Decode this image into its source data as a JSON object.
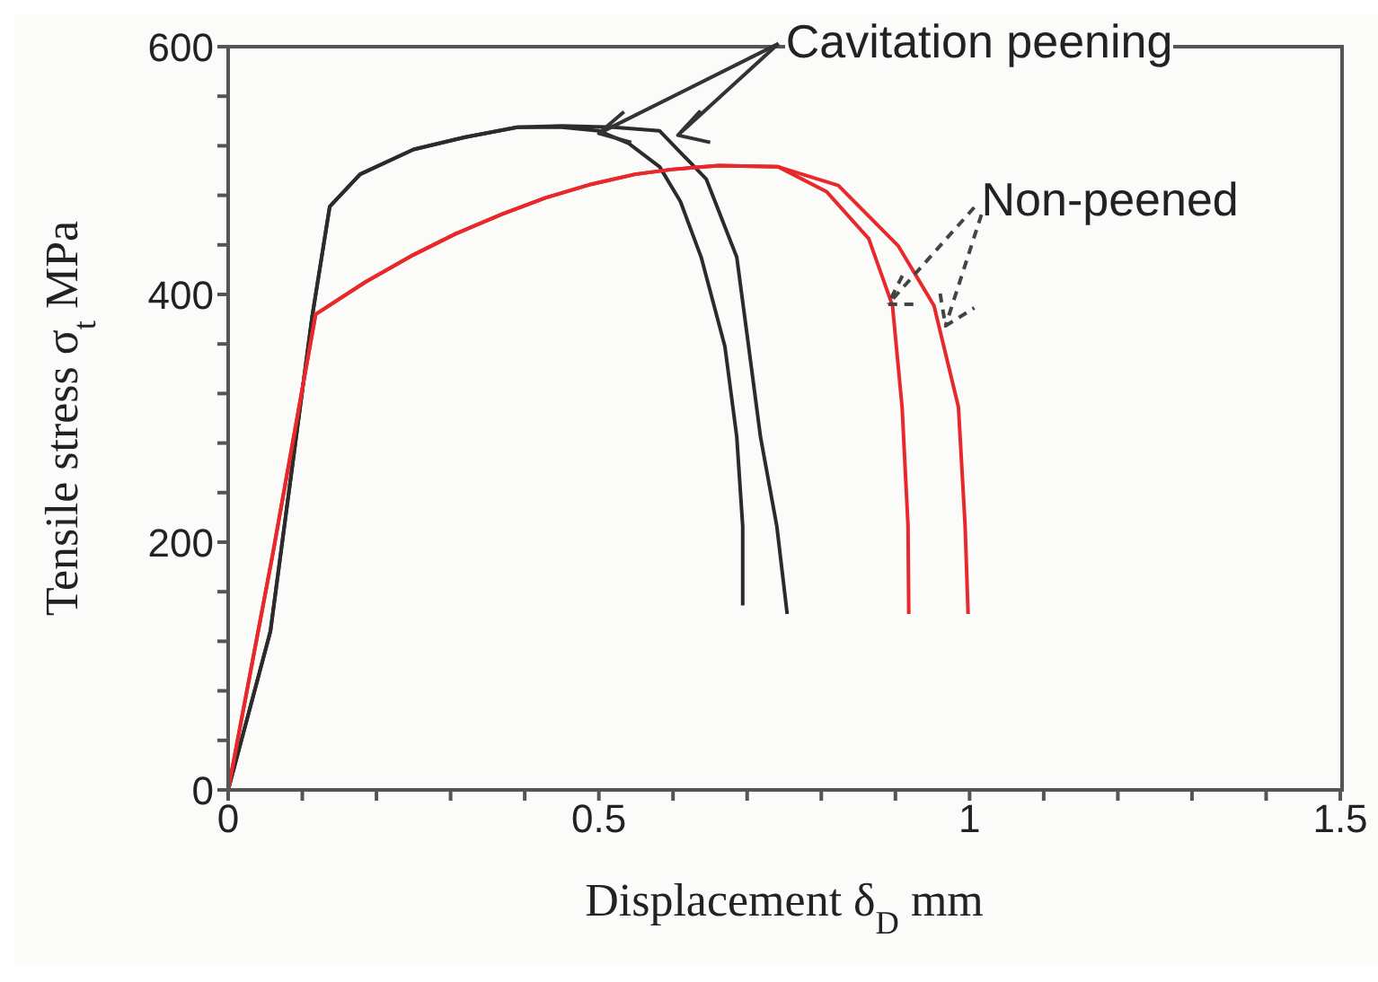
{
  "chart_data": {
    "type": "line",
    "xlabel": "Displacement   δ$_{D}$   mm",
    "ylabel": "Tensile stress   σ$_{t}$   MPa",
    "annotations": [
      {
        "text": "Cavitation peening",
        "x": 0.5,
        "y": 530
      },
      {
        "text": "Non-peened",
        "x": 0.89,
        "y": 392
      }
    ],
    "xlim": [
      0,
      1.5
    ],
    "ylim": [
      0,
      600
    ],
    "xticks": [
      0,
      {
        "value": 0.1,
        "label": null
      },
      {
        "value": 0.2,
        "label": null
      },
      {
        "value": 0.3,
        "label": null
      },
      {
        "value": 0.4,
        "label": null
      },
      0.5,
      {
        "value": 0.6,
        "label": null
      },
      {
        "value": 0.7,
        "label": null
      },
      {
        "value": 0.8,
        "label": null
      },
      {
        "value": 0.9,
        "label": null
      },
      1,
      {
        "value": 1.1,
        "label": null
      },
      {
        "value": 1.2,
        "label": null
      },
      {
        "value": 1.3,
        "label": null
      },
      {
        "value": 1.4,
        "label": null
      },
      1.5
    ],
    "yticks": [
      0,
      {
        "value": 40,
        "label": null
      },
      {
        "value": 80,
        "label": null
      },
      {
        "value": 120,
        "label": null
      },
      {
        "value": 160,
        "label": null
      },
      200,
      {
        "value": 240,
        "label": null
      },
      {
        "value": 280,
        "label": null
      },
      {
        "value": 320,
        "label": null
      },
      {
        "value": 360,
        "label": null
      },
      400,
      {
        "value": 440,
        "label": null
      },
      {
        "value": 480,
        "label": null
      },
      {
        "value": 520,
        "label": null
      },
      {
        "value": 560,
        "label": null
      },
      600
    ],
    "grid": false,
    "legend": false,
    "marker": "none",
    "line_style": "solid",
    "series": [
      {
        "color": "#2b2b2b",
        "x": [
          0,
          0.057,
          0.113,
          0.137,
          0.178,
          0.25,
          0.32,
          0.39,
          0.45,
          0.5,
          0.54,
          0.582,
          0.61,
          0.638,
          0.67,
          0.686,
          0.694,
          0.694
        ],
        "values": [
          0,
          128,
          381,
          471,
          497,
          517,
          527,
          535,
          535,
          532,
          522,
          503,
          475,
          430,
          358,
          285,
          213,
          149
        ]
      },
      {
        "color": "#2b2b2b",
        "x": [
          0,
          0.057,
          0.113,
          0.137,
          0.178,
          0.25,
          0.32,
          0.39,
          0.45,
          0.52,
          0.582,
          0.645,
          0.686,
          0.702,
          0.718,
          0.74,
          0.754
        ],
        "values": [
          0,
          128,
          381,
          471,
          497,
          517,
          527,
          535,
          536,
          535,
          532,
          493,
          430,
          358,
          285,
          213,
          142
        ]
      },
      {
        "color": "#e8282a",
        "x": [
          0,
          0.06,
          0.118,
          0.185,
          0.25,
          0.307,
          0.37,
          0.428,
          0.49,
          0.549,
          0.6,
          0.662,
          0.742,
          0.807,
          0.864,
          0.896,
          0.909,
          0.917,
          0.918
        ],
        "values": [
          0,
          190,
          384,
          410,
          432,
          449,
          465,
          478,
          489,
          497,
          501,
          504,
          503,
          483,
          445,
          391,
          309,
          213,
          142
        ]
      },
      {
        "color": "#e8282a",
        "x": [
          0,
          0.06,
          0.118,
          0.185,
          0.25,
          0.307,
          0.37,
          0.428,
          0.49,
          0.549,
          0.6,
          0.662,
          0.742,
          0.823,
          0.904,
          0.952,
          0.985,
          0.994,
          0.998
        ],
        "values": [
          0,
          190,
          384,
          410,
          432,
          449,
          465,
          478,
          489,
          497,
          501,
          504,
          503,
          488,
          439,
          391,
          309,
          213,
          142
        ]
      }
    ]
  }
}
